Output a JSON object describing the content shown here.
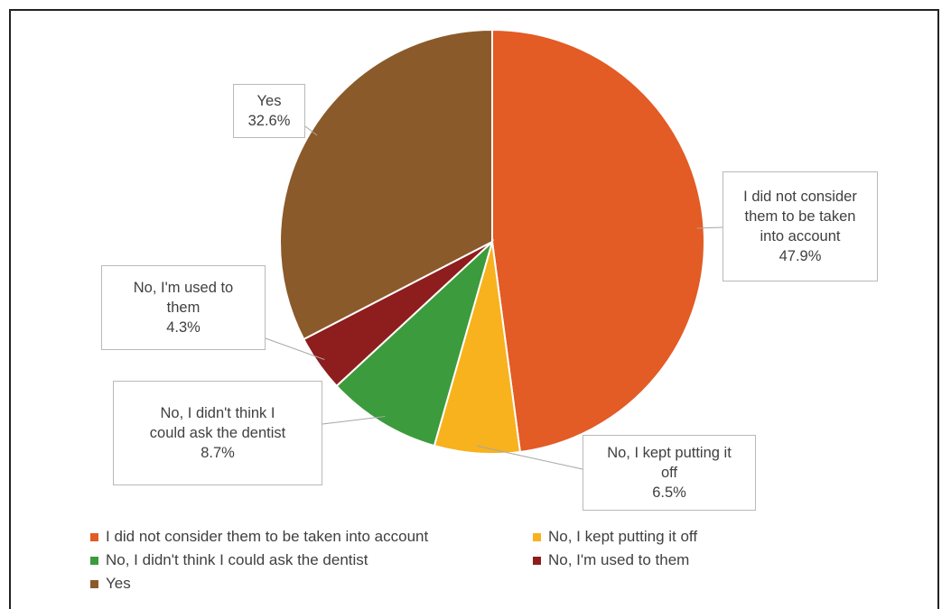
{
  "chart_data": {
    "type": "pie",
    "title": "",
    "slices": [
      {
        "label": "I did not consider them to be taken into account",
        "callout": "I did not consider\nthem to be taken\ninto account",
        "value": 47.9,
        "value_label": "47.9%",
        "color": "#E35B25"
      },
      {
        "label": "No, I kept putting it off",
        "callout": "No, I kept putting it\noff",
        "value": 6.5,
        "value_label": "6.5%",
        "color": "#F7B21E"
      },
      {
        "label": "No, I didn't think I could ask the dentist",
        "callout": "No, I didn't think I\ncould ask the dentist",
        "value": 8.7,
        "value_label": "8.7%",
        "color": "#3C9B3C"
      },
      {
        "label": "No, I'm used to them",
        "callout": "No, I'm used to\nthem",
        "value": 4.3,
        "value_label": "4.3%",
        "color": "#8E1D1D"
      },
      {
        "label": "Yes",
        "callout": "Yes",
        "value": 32.6,
        "value_label": "32.6%",
        "color": "#8A5A2B"
      }
    ],
    "legend_position": "bottom"
  }
}
